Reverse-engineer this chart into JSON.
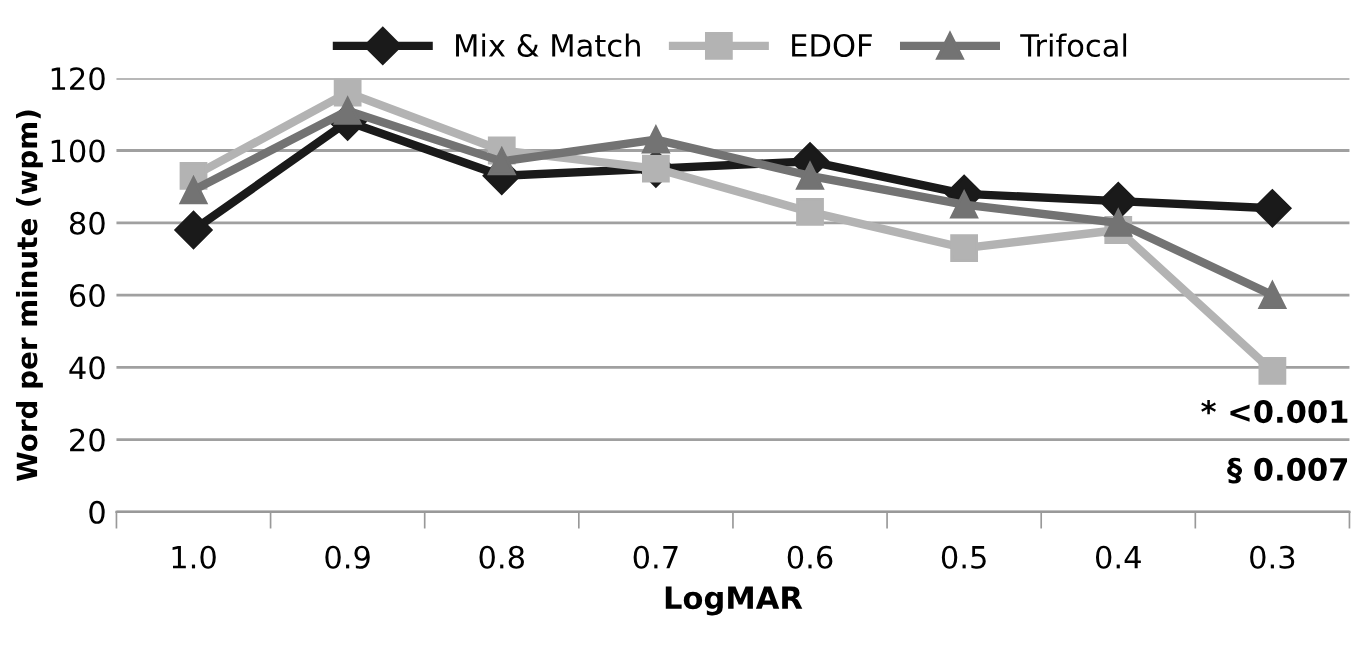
{
  "chart_data": {
    "type": "line",
    "xlabel": "LogMAR",
    "ylabel": "Word per minute (wpm)",
    "categories": [
      "1.0",
      "0.9",
      "0.8",
      "0.7",
      "0.6",
      "0.5",
      "0.4",
      "0.3"
    ],
    "series": [
      {
        "name": "Mix & Match",
        "color": "#1a1a1a",
        "marker": "diamond",
        "values": [
          78,
          108,
          93,
          95,
          97,
          88,
          86,
          84
        ]
      },
      {
        "name": "EDOF",
        "color": "#b3b3b3",
        "marker": "square",
        "values": [
          93,
          116,
          100,
          95,
          83,
          73,
          78,
          39
        ]
      },
      {
        "name": "Trifocal",
        "color": "#737373",
        "marker": "triangle",
        "values": [
          89,
          111,
          97,
          103,
          93,
          85,
          80,
          60
        ]
      }
    ],
    "ylim": [
      0,
      120
    ],
    "yticks": [
      0,
      20,
      40,
      60,
      80,
      100,
      120
    ],
    "grid": "y",
    "legend": "top",
    "line_style": "solid",
    "annotations": [
      "* <0.001",
      "§ 0.007"
    ]
  }
}
